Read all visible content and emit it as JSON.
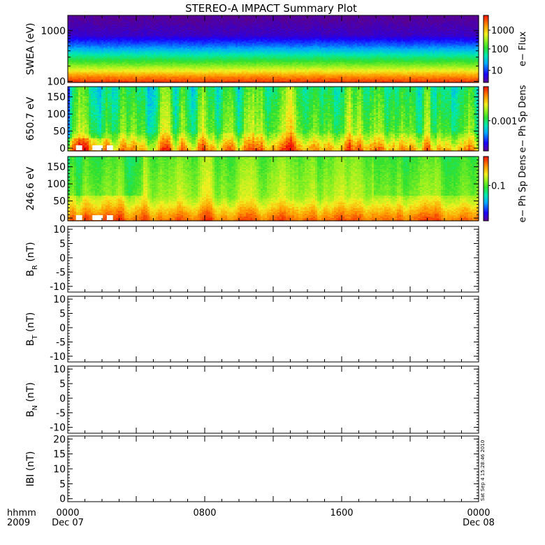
{
  "title": "STEREO-A IMPACT Summary Plot",
  "timestamp": "Sat Sep  4 15:28:46 2010",
  "chart_data": [
    {
      "type": "heatmap",
      "ylabel": "SWEA (eV)",
      "ylog": true,
      "ylim": [
        95,
        2000
      ],
      "yticks": [
        {
          "v": 100,
          "label": "100"
        },
        {
          "v": 1000,
          "label": "1000"
        }
      ],
      "colorbar_label": "e− Flux",
      "colorbar_ticks": [
        "1000",
        "100",
        "10"
      ],
      "profile": [
        [
          0.0,
          0.96
        ],
        [
          0.08,
          0.87
        ],
        [
          0.16,
          0.74
        ],
        [
          0.27,
          0.58
        ],
        [
          0.4,
          0.42
        ],
        [
          0.55,
          0.22
        ],
        [
          0.7,
          0.06
        ],
        [
          1.0,
          0.0
        ]
      ]
    },
    {
      "type": "heatmap",
      "ylabel": "650.7 eV",
      "ylim": [
        -8,
        180
      ],
      "yticks": [
        0,
        50,
        100,
        150
      ],
      "colorbar_label": "e− Ph Sp Dens",
      "colorbar_ticks": [
        "0.001"
      ]
    },
    {
      "type": "heatmap",
      "ylabel": "246.6 eV",
      "ylim": [
        -8,
        180
      ],
      "yticks": [
        0,
        50,
        100,
        150
      ],
      "colorbar_label": "e− Ph Sp Dens",
      "colorbar_ticks": [
        "0.1"
      ]
    },
    {
      "type": "line",
      "ylabel": "B",
      "ylabel_sub": "R",
      "yunit": "(nT)",
      "ylim": [
        -12,
        11
      ],
      "yticks": [
        -10,
        -5,
        0,
        5,
        10
      ],
      "series": []
    },
    {
      "type": "line",
      "ylabel": "B",
      "ylabel_sub": "T",
      "yunit": "(nT)",
      "ylim": [
        -12,
        11
      ],
      "yticks": [
        -10,
        -5,
        0,
        5,
        10
      ],
      "series": []
    },
    {
      "type": "line",
      "ylabel": "B",
      "ylabel_sub": "N",
      "yunit": "(nT)",
      "ylim": [
        -12,
        11
      ],
      "yticks": [
        -10,
        -5,
        0,
        5,
        10
      ],
      "series": []
    },
    {
      "type": "line",
      "ylabel": "IBI (nT)",
      "ylim": [
        -1,
        21
      ],
      "yticks": [
        0,
        5,
        10,
        15,
        20
      ],
      "series": []
    }
  ],
  "xaxis": {
    "range_hours": [
      0,
      24
    ],
    "minor_step_hours": 1,
    "ticks": [
      {
        "hours": 0,
        "top": "0000",
        "bottom": "Dec 07"
      },
      {
        "hours": 8,
        "top": "0800",
        "bottom": ""
      },
      {
        "hours": 16,
        "top": "1600",
        "bottom": ""
      },
      {
        "hours": 24,
        "top": "0000",
        "bottom": "Dec 08"
      }
    ],
    "row_label_top": "hhmm",
    "row_label_bottom": "2009"
  }
}
